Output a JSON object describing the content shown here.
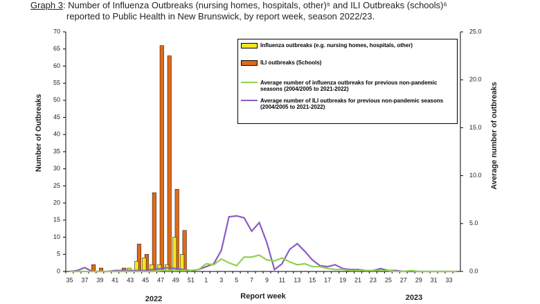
{
  "chart_data": {
    "type": "bar_line",
    "title_prefix": "Graph 3",
    "title": "Number of Influenza Outbreaks (nursing homes, hospitals, other)⁵ and ILI Outbreaks (schools)⁶",
    "subtitle": "reported to Public Health in New Brunswick, by report week, season 2022/23.",
    "x_label": "Report week",
    "y_label": "Number of Outbreaks",
    "y2_label": "Average number of outbreaks",
    "annotations": [
      "2022",
      "2023"
    ],
    "categories": [
      "35",
      null,
      "37",
      null,
      "39",
      null,
      "41",
      null,
      "43",
      null,
      "45",
      null,
      "47",
      null,
      "49",
      null,
      "51",
      null,
      "1",
      null,
      "3",
      null,
      "5",
      null,
      "7",
      null,
      "9",
      null,
      "11",
      null,
      "13",
      null,
      "15",
      null,
      "17",
      null,
      "19",
      null,
      "21",
      null,
      "23",
      null,
      "25",
      null,
      "27",
      null,
      "29",
      null,
      "31",
      null,
      "33",
      null
    ],
    "ylim": [
      0,
      70
    ],
    "yticks": [
      0,
      5,
      10,
      15,
      20,
      25,
      30,
      35,
      40,
      45,
      50,
      55,
      60,
      65,
      70
    ],
    "y2lim": [
      0,
      25
    ],
    "y2ticks": [
      {
        "value": 0,
        "label": "0.0"
      },
      {
        "value": 5,
        "label": "5.0"
      },
      {
        "value": 10,
        "label": "10.0"
      },
      {
        "value": 15,
        "label": "15.0"
      },
      {
        "value": 20,
        "label": "20.0"
      },
      {
        "value": 25,
        "label": "25.0"
      }
    ],
    "series": [
      {
        "name": "Influenza outbreaks (e.g. nursing homes, hospitals, other)",
        "kind": "bar",
        "color": "#f5e621",
        "values": [
          0,
          0,
          0,
          0,
          0,
          0,
          0,
          0,
          1,
          3,
          4,
          2,
          2,
          2,
          10,
          5,
          0,
          0,
          0,
          0,
          0,
          0,
          0,
          0,
          0,
          0,
          0,
          0,
          0,
          0,
          0,
          0,
          0,
          0,
          0,
          0,
          0,
          0,
          0,
          0,
          0,
          0,
          0,
          0,
          0,
          0,
          0,
          0,
          0,
          0,
          0,
          0
        ]
      },
      {
        "name": "ILI outbreaks (Schools)",
        "kind": "bar",
        "color": "#e06a17",
        "values": [
          0,
          0,
          0,
          2,
          1,
          0,
          0,
          1,
          0,
          8,
          5,
          23,
          66,
          63,
          24,
          12,
          0,
          0,
          0,
          0,
          0,
          0,
          0,
          0,
          0,
          0,
          0,
          0,
          0,
          0,
          0,
          0,
          0,
          0,
          0,
          0,
          0,
          0,
          0,
          0,
          0,
          0,
          0,
          0,
          0,
          0,
          0,
          0,
          0,
          0,
          0,
          0
        ]
      },
      {
        "name": "Average number of influenza outbreaks for previous non-pandemic seasons (2004/2005 to 2021-2022)",
        "kind": "line",
        "axis": "y2",
        "color": "#92d050",
        "values": [
          0,
          0,
          0,
          0,
          0,
          0,
          0,
          0,
          0,
          0,
          0,
          0,
          0.1,
          0.1,
          0.1,
          0.1,
          0.1,
          0.2,
          0.8,
          0.7,
          1.3,
          0.9,
          0.6,
          1.5,
          1.5,
          1.7,
          1.2,
          1.1,
          1.4,
          1.0,
          0.7,
          0.8,
          0.5,
          0.5,
          0.3,
          0.2,
          0.2,
          0.1,
          0.1,
          0.1,
          0.1,
          0.1,
          0.1,
          0,
          0,
          0.1,
          0,
          0,
          0,
          0,
          0,
          0
        ]
      },
      {
        "name": "Average number of ILI outbreaks for previous non-pandemic seasons (2004/2005 to 2021-2022)",
        "kind": "line",
        "axis": "y2",
        "color": "#8a5cc2",
        "values": [
          0,
          0.1,
          0.4,
          0,
          0,
          0,
          0.1,
          0.1,
          0.1,
          0.1,
          0.1,
          0.2,
          0.3,
          0.4,
          0.3,
          0.2,
          0.1,
          0.2,
          0.5,
          0.8,
          2.2,
          5.7,
          5.8,
          5.6,
          4.2,
          5.1,
          3.0,
          0.2,
          0.8,
          2.3,
          2.9,
          2.1,
          1.2,
          0.6,
          0.5,
          0.7,
          0.3,
          0.2,
          0.2,
          0.1,
          0.1,
          0.3,
          0.1,
          0.1,
          0,
          0,
          0,
          0,
          0,
          0,
          0,
          0
        ]
      }
    ]
  }
}
